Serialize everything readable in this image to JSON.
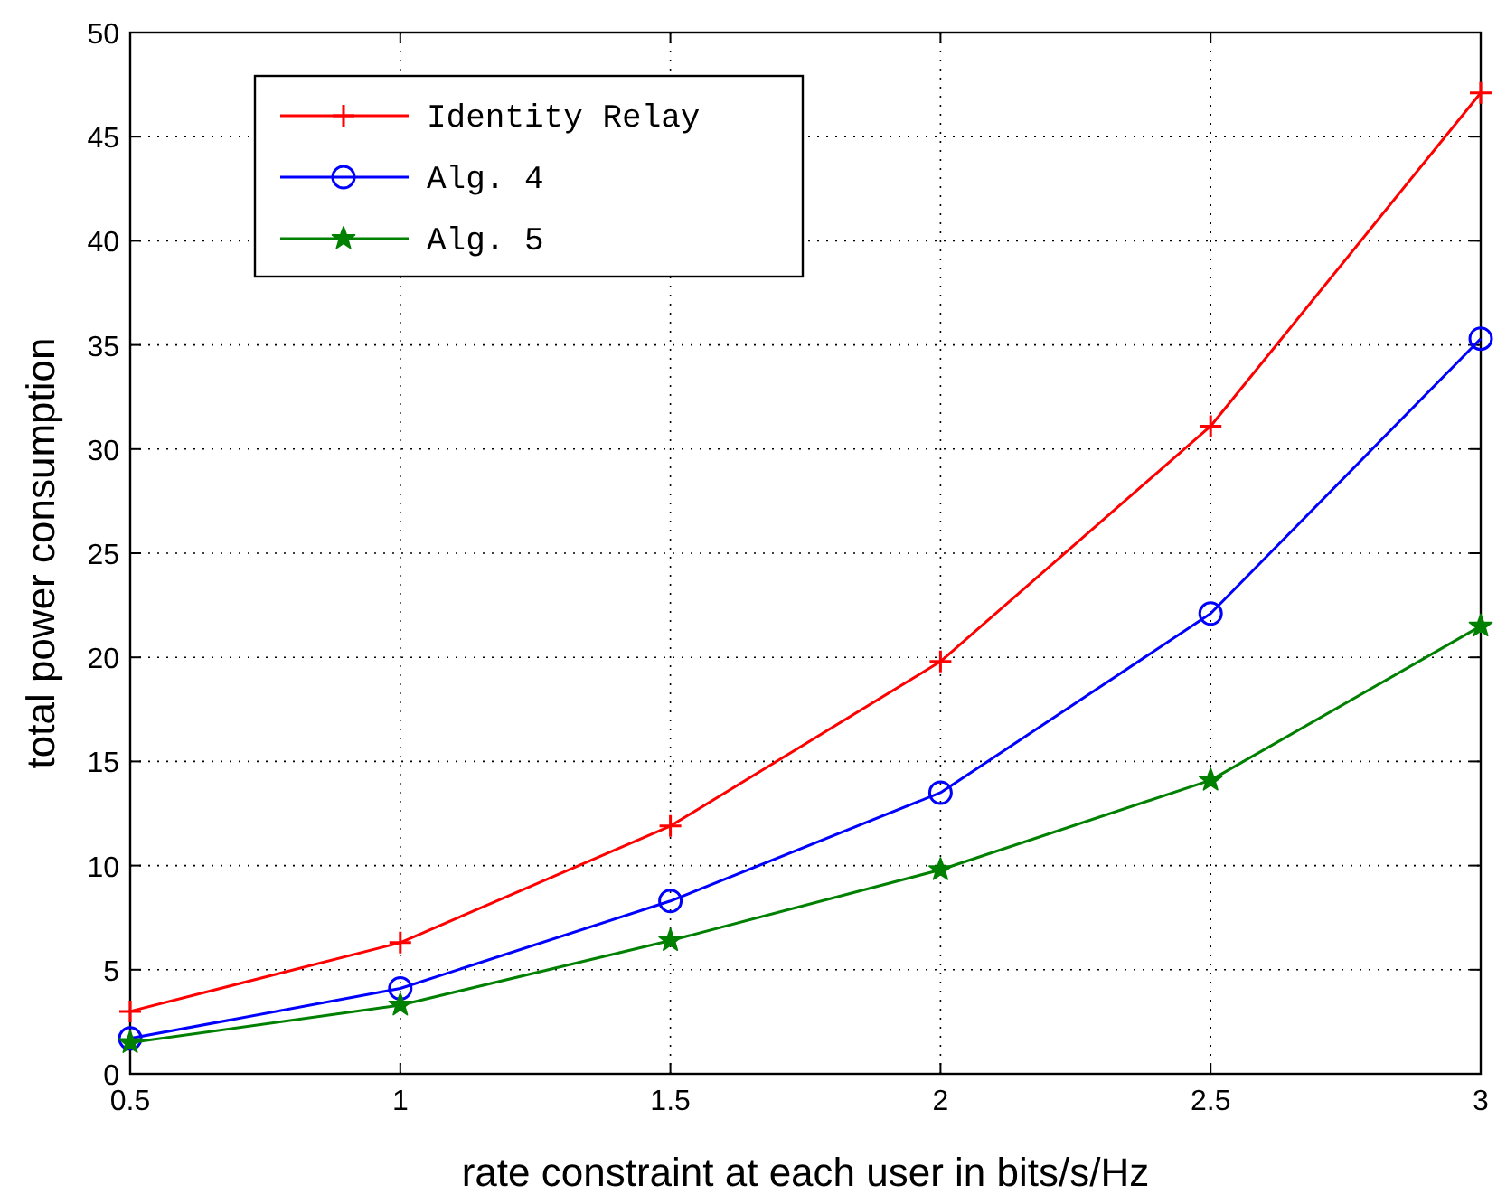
{
  "chart_data": {
    "type": "line",
    "xlabel": "rate constraint at each user in bits/s/Hz",
    "ylabel": "total power consumption",
    "x": [
      0.5,
      1,
      1.5,
      2,
      2.5,
      3
    ],
    "series": [
      {
        "name": "Identity Relay",
        "color": "#ff0000",
        "marker": "cross",
        "values": [
          3.0,
          6.3,
          11.9,
          19.8,
          31.1,
          47.1
        ]
      },
      {
        "name": "Alg. 4",
        "color": "#0000ff",
        "marker": "circle",
        "values": [
          1.7,
          4.1,
          8.3,
          13.5,
          22.1,
          35.3
        ]
      },
      {
        "name": "Alg. 5",
        "color": "#008000",
        "marker": "star",
        "values": [
          1.5,
          3.3,
          6.4,
          9.8,
          14.1,
          21.5
        ]
      }
    ],
    "xlim": [
      0.5,
      3
    ],
    "xticks": [
      0.5,
      1,
      1.5,
      2,
      2.5,
      3
    ],
    "ylim": [
      0,
      50
    ],
    "yticks": [
      0,
      5,
      10,
      15,
      20,
      25,
      30,
      35,
      40,
      45,
      50
    ],
    "grid": true,
    "legend": "top left",
    "line_style": "solid"
  }
}
